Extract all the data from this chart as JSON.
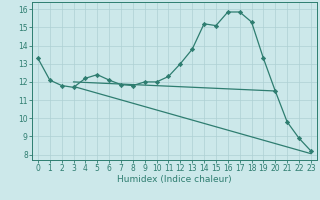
{
  "line1_x": [
    0,
    1,
    2,
    3,
    4,
    5,
    6,
    7,
    8,
    9,
    10,
    11,
    12,
    13,
    14,
    15,
    16,
    17,
    18,
    19,
    20,
    21,
    22,
    23
  ],
  "line1_y": [
    13.3,
    12.1,
    11.8,
    11.7,
    12.2,
    12.4,
    12.1,
    11.85,
    11.8,
    12.0,
    12.0,
    12.3,
    13.0,
    13.8,
    15.2,
    15.1,
    15.85,
    15.85,
    15.3,
    13.3,
    11.5,
    9.8,
    8.9,
    8.2
  ],
  "line2_x": [
    3,
    20
  ],
  "line2_y": [
    12.0,
    11.5
  ],
  "line3_x": [
    3,
    23
  ],
  "line3_y": [
    11.75,
    8.05
  ],
  "line_color": "#2e7d70",
  "bg_color": "#cce8ea",
  "grid_color": "#aed0d4",
  "xlabel": "Humidex (Indice chaleur)",
  "xlim": [
    -0.5,
    23.5
  ],
  "ylim": [
    7.7,
    16.4
  ],
  "yticks": [
    8,
    9,
    10,
    11,
    12,
    13,
    14,
    15,
    16
  ],
  "xticks": [
    0,
    1,
    2,
    3,
    4,
    5,
    6,
    7,
    8,
    9,
    10,
    11,
    12,
    13,
    14,
    15,
    16,
    17,
    18,
    19,
    20,
    21,
    22,
    23
  ],
  "marker": "D",
  "markersize": 2.2,
  "linewidth": 0.9,
  "tick_fontsize": 5.5,
  "xlabel_fontsize": 6.5
}
